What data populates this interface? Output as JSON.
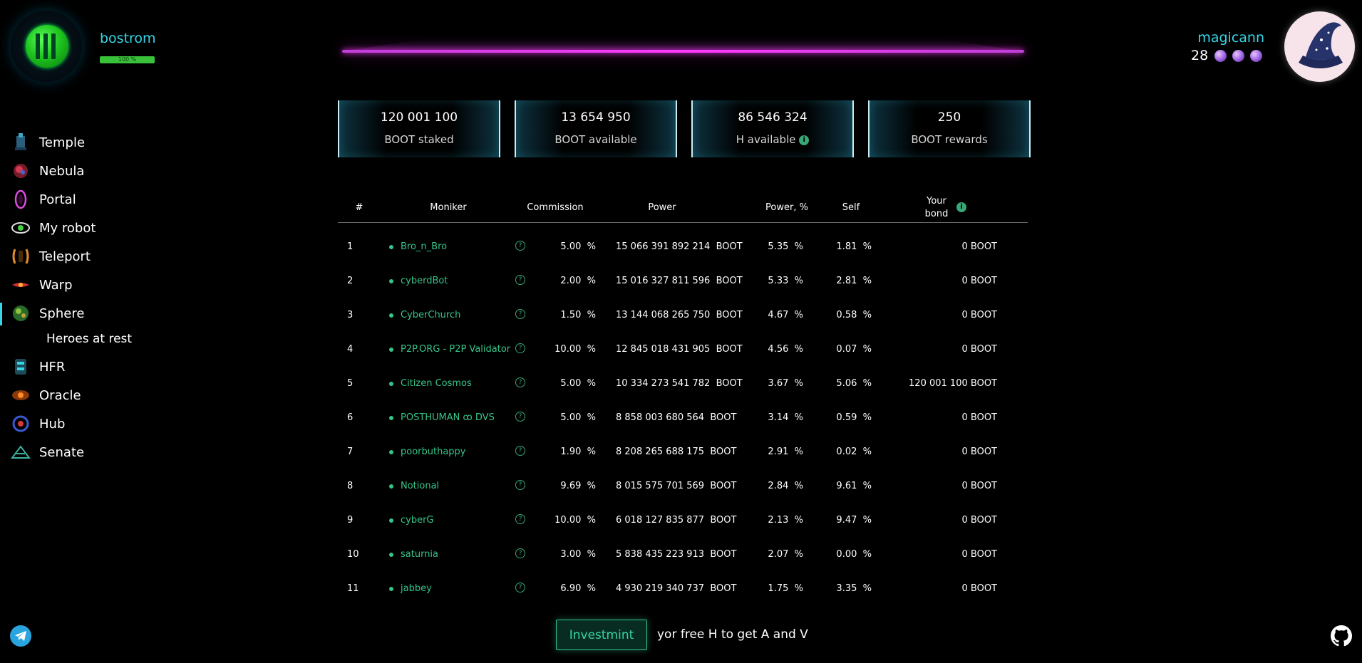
{
  "network": {
    "name": "bostrom",
    "progress_label": "100 %",
    "progress": 1.0
  },
  "user": {
    "name": "magicann",
    "count": "28"
  },
  "stats": [
    {
      "value": "120 001 100",
      "label": "BOOT staked"
    },
    {
      "value": "13 654 950",
      "label": "BOOT available"
    },
    {
      "value": "86 546 324",
      "label": "H available"
    },
    {
      "value": "250",
      "label": "BOOT rewards"
    }
  ],
  "sidebar": {
    "items": [
      {
        "label": "Temple",
        "icon": "temple-icon"
      },
      {
        "label": "Nebula",
        "icon": "nebula-icon"
      },
      {
        "label": "Portal",
        "icon": "portal-icon"
      },
      {
        "label": "My robot",
        "icon": "robot-eye-icon"
      },
      {
        "label": "Teleport",
        "icon": "teleport-icon"
      },
      {
        "label": "Warp",
        "icon": "warp-icon"
      },
      {
        "label": "Sphere",
        "icon": "sphere-icon"
      },
      {
        "label": "HFR",
        "icon": "hfr-icon"
      },
      {
        "label": "Oracle",
        "icon": "oracle-icon"
      },
      {
        "label": "Hub",
        "icon": "hub-icon"
      },
      {
        "label": "Senate",
        "icon": "senate-icon"
      }
    ],
    "active": "Sphere",
    "subitem": "Heroes at rest"
  },
  "table": {
    "headers": {
      "num": "#",
      "moniker": "Moniker",
      "commission": "Commission",
      "power": "Power",
      "power_pct": "Power, %",
      "self": "Self",
      "bond_line1": "Your",
      "bond_line2": "bond"
    },
    "rows": [
      {
        "num": "1",
        "moniker": "Bro_n_Bro",
        "commission": "5.00",
        "power": "15 066 391 892 214",
        "power_pct": "5.35",
        "self": "1.81",
        "bond": "0"
      },
      {
        "num": "2",
        "moniker": "cyberdBot",
        "commission": "2.00",
        "power": "15 016 327 811 596",
        "power_pct": "5.33",
        "self": "2.81",
        "bond": "0"
      },
      {
        "num": "3",
        "moniker": "CyberChurch",
        "commission": "1.50",
        "power": "13 144 068 265 750",
        "power_pct": "4.67",
        "self": "0.58",
        "bond": "0"
      },
      {
        "num": "4",
        "moniker": "P2P.ORG - P2P Validator",
        "commission": "10.00",
        "power": "12 845 018 431 905",
        "power_pct": "4.56",
        "self": "0.07",
        "bond": "0"
      },
      {
        "num": "5",
        "moniker": "Citizen Cosmos",
        "commission": "5.00",
        "power": "10 334 273 541 782",
        "power_pct": "3.67",
        "self": "5.06",
        "bond": "120 001 100"
      },
      {
        "num": "6",
        "moniker": "POSTHUMAN ꝏ DVS",
        "commission": "5.00",
        "power": "8 858 003 680 564",
        "power_pct": "3.14",
        "self": "0.59",
        "bond": "0"
      },
      {
        "num": "7",
        "moniker": "poorbuthappy",
        "commission": "1.90",
        "power": "8 208 265 688 175",
        "power_pct": "2.91",
        "self": "0.02",
        "bond": "0"
      },
      {
        "num": "8",
        "moniker": "Notional",
        "commission": "9.69",
        "power": "8 015 575 701 569",
        "power_pct": "2.84",
        "self": "9.61",
        "bond": "0"
      },
      {
        "num": "9",
        "moniker": "cyberG",
        "commission": "10.00",
        "power": "6 018 127 835 877",
        "power_pct": "2.13",
        "self": "9.47",
        "bond": "0"
      },
      {
        "num": "10",
        "moniker": "saturnia",
        "commission": "3.00",
        "power": "5 838 435 223 913",
        "power_pct": "2.07",
        "self": "0.00",
        "bond": "0"
      },
      {
        "num": "11",
        "moniker": "jabbey",
        "commission": "6.90",
        "power": "4 930 219 340 737",
        "power_pct": "1.75",
        "self": "3.35",
        "bond": "0"
      }
    ],
    "unit": "BOOT",
    "pct": "%"
  },
  "footer": {
    "button": "Investmint",
    "text": "yor free H to get A and V"
  },
  "colors": {
    "accent": "#36d6e7",
    "green": "#36c48a",
    "magenta": "#ff3aff"
  }
}
